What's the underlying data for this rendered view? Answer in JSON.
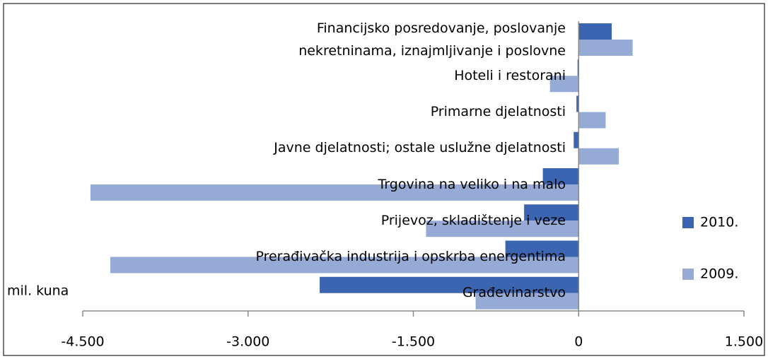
{
  "chart_data": {
    "type": "barh",
    "categories": [
      "Financijsko posredovanje, poslovanje nekretninama, iznajmljivanje i poslovne",
      "Hoteli i restorani",
      "Primarne djelatnosti",
      "Javne djelatnosti; ostale uslužne djelatnosti",
      "Trgovina na veliko i na malo",
      "Prijevoz, skladištenje i veze",
      "Prerađivačka industrija i opskrba  energentima",
      "Građevinarstvo"
    ],
    "series": [
      {
        "name": "2010.",
        "color": "#3b65b0",
        "values": [
          300,
          -10,
          -20,
          -45,
          -325,
          -495,
          -665,
          -2350
        ]
      },
      {
        "name": "2009.",
        "color": "#95abd6",
        "values": [
          490,
          -260,
          245,
          365,
          -4430,
          -1385,
          -4250,
          -935
        ]
      }
    ],
    "xlim": [
      -4500,
      1500
    ],
    "xticks": [
      {
        "value": -4500,
        "label": "-4.500"
      },
      {
        "value": -3000,
        "label": "-3.000"
      },
      {
        "value": -1500,
        "label": "-1.500"
      },
      0,
      {
        "value": 1500,
        "label": "1.500"
      }
    ],
    "annotation": "mil. kuna",
    "legend": "right"
  }
}
